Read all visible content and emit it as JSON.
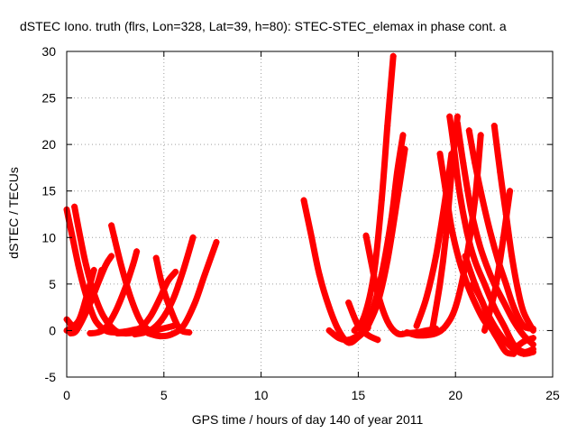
{
  "chart_data": {
    "type": "scatter",
    "title": "dSTEC Iono. truth (flrs, Lon=328, Lat=39, h=80): STEC-STEC_elemax in phase cont. a",
    "xlabel": "GPS time / hours of day 140 of year 2011",
    "ylabel": "dSTEC  / TECUs",
    "xlim": [
      0,
      25
    ],
    "ylim": [
      -5,
      30
    ],
    "x_ticks": [
      "0",
      "5",
      "10",
      "15",
      "20",
      "25"
    ],
    "y_ticks": [
      "-5",
      "0",
      "5",
      "10",
      "15",
      "20",
      "25",
      "30"
    ],
    "x_tick_values": [
      0,
      5,
      10,
      15,
      20,
      25
    ],
    "y_tick_values": [
      -5,
      0,
      5,
      10,
      15,
      20,
      25,
      30
    ],
    "grid": true,
    "marker": "plus",
    "color": "#ff0000",
    "series": [
      {
        "arcs": [
          {
            "x": [
              0.0,
              0.3,
              0.6,
              0.9,
              1.2,
              1.5,
              2.0,
              2.5,
              3.0,
              3.5,
              4.0
            ],
            "y": [
              13.0,
              10.0,
              7.0,
              4.5,
              2.5,
              1.0,
              0.0,
              -0.2,
              -0.1,
              0.1,
              0.3
            ]
          },
          {
            "x": [
              0.4,
              0.7,
              1.0,
              1.4,
              1.9,
              2.5,
              3.0,
              3.5
            ],
            "y": [
              13.3,
              10.0,
              7.0,
              4.0,
              1.5,
              0.0,
              -0.3,
              -0.2
            ]
          },
          {
            "x": [
              0.0,
              0.5,
              1.0,
              1.5,
              1.8
            ],
            "y": [
              1.2,
              0.3,
              2.0,
              4.5,
              6.5
            ]
          },
          {
            "x": [
              0.2,
              0.5,
              1.0,
              1.5,
              2.0,
              2.3
            ],
            "y": [
              -0.3,
              0.0,
              2.0,
              4.5,
              7.0,
              8.0
            ]
          },
          {
            "x": [
              0.0,
              0.6,
              1.0,
              1.4
            ],
            "y": [
              0.0,
              1.0,
              3.5,
              6.5
            ]
          },
          {
            "x": [
              2.3,
              2.8,
              3.3,
              3.8,
              4.3,
              4.9,
              5.5
            ],
            "y": [
              11.3,
              7.0,
              3.5,
              1.0,
              0.0,
              0.2,
              0.5
            ]
          },
          {
            "x": [
              1.2,
              1.6,
              2.0,
              2.5,
              3.0,
              3.4,
              3.6
            ],
            "y": [
              -0.3,
              -0.2,
              0.3,
              2.0,
              4.5,
              7.0,
              8.5
            ]
          },
          {
            "x": [
              2.6,
              3.2,
              3.8,
              4.3,
              4.8,
              5.2,
              5.6
            ],
            "y": [
              -0.3,
              -0.2,
              0.3,
              1.5,
              3.5,
              5.3,
              6.3
            ]
          },
          {
            "x": [
              4.6,
              4.9,
              5.3,
              5.8,
              6.3
            ],
            "y": [
              7.8,
              5.0,
              2.5,
              0.2,
              -0.2
            ]
          },
          {
            "x": [
              3.5,
              4.0,
              4.5,
              5.0,
              5.5,
              6.0,
              6.5
            ],
            "y": [
              -0.4,
              -0.2,
              0.3,
              1.5,
              3.5,
              6.5,
              10.0
            ]
          },
          {
            "x": [
              4.2,
              4.8,
              5.4,
              6.0,
              6.6,
              7.1,
              7.7
            ],
            "y": [
              -0.3,
              -0.6,
              -0.4,
              0.5,
              3.0,
              6.0,
              9.5
            ]
          }
        ]
      },
      {
        "arcs": [
          {
            "x": [
              12.2,
              12.6,
              13.0,
              13.5,
              14.0,
              14.5,
              15.0,
              15.5
            ],
            "y": [
              14.0,
              10.0,
              6.0,
              2.5,
              0.0,
              -1.3,
              -0.7,
              0.3
            ]
          },
          {
            "x": [
              13.5,
              14.0,
              14.5,
              15.0,
              15.4
            ],
            "y": [
              0.0,
              -0.8,
              -1.0,
              -0.5,
              0.2
            ]
          },
          {
            "x": [
              14.5,
              15.0,
              15.5,
              16.0
            ],
            "y": [
              3.0,
              0.5,
              -0.5,
              -1.0
            ]
          },
          {
            "x": [
              15.4,
              15.7,
              16.0,
              16.5,
              17.0,
              17.5,
              18.0,
              18.5,
              19.0
            ],
            "y": [
              10.2,
              7.0,
              4.0,
              1.0,
              -0.3,
              -0.3,
              -0.2,
              0.0,
              0.2
            ]
          },
          {
            "x": [
              14.8,
              15.3,
              15.8,
              16.2,
              16.5,
              16.8
            ],
            "y": [
              0.0,
              1.5,
              6.0,
              14.0,
              22.0,
              29.5
            ]
          },
          {
            "x": [
              15.2,
              15.7,
              16.2,
              16.7,
              17.0,
              17.3
            ],
            "y": [
              0.0,
              2.0,
              6.0,
              12.0,
              17.0,
              21.0
            ]
          },
          {
            "x": [
              15.5,
              16.0,
              16.5,
              17.0,
              17.4
            ],
            "y": [
              0.5,
              3.0,
              7.5,
              14.0,
              19.5
            ]
          },
          {
            "x": [
              18.0,
              18.5,
              19.0,
              19.5,
              19.8
            ],
            "y": [
              0.5,
              3.5,
              8.0,
              14.5,
              19.0
            ]
          },
          {
            "x": [
              19.7,
              19.9,
              20.2,
              20.6,
              21.0,
              21.5,
              22.0,
              22.5,
              23.0,
              23.5,
              24.0
            ],
            "y": [
              23.0,
              20.0,
              15.0,
              10.5,
              7.5,
              5.0,
              2.5,
              0.5,
              -1.5,
              -2.3,
              -2.0
            ]
          },
          {
            "x": [
              19.2,
              19.5,
              19.8,
              20.2,
              20.6,
              21.0,
              21.5,
              22.0
            ],
            "y": [
              19.0,
              15.0,
              11.0,
              7.5,
              5.0,
              3.0,
              1.0,
              0.0
            ]
          },
          {
            "x": [
              18.8,
              19.2,
              19.5,
              19.8,
              20.1
            ],
            "y": [
              0.0,
              5.0,
              10.0,
              17.0,
              23.0
            ]
          },
          {
            "x": [
              17.5,
              18.0,
              18.5,
              19.0,
              19.5,
              20.0,
              20.5,
              21.0,
              21.3
            ],
            "y": [
              -0.2,
              -0.5,
              -0.5,
              -0.3,
              0.5,
              2.5,
              7.0,
              14.0,
              21.0
            ]
          },
          {
            "x": [
              20.1,
              20.4,
              20.8,
              21.2,
              21.6,
              22.0,
              22.5,
              23.0,
              23.5,
              24.0
            ],
            "y": [
              22.3,
              18.0,
              13.0,
              9.5,
              7.0,
              5.0,
              3.0,
              1.0,
              -0.5,
              -1.5
            ]
          },
          {
            "x": [
              20.7,
              21.0,
              21.4,
              21.8,
              22.2,
              22.6,
              23.0,
              23.5,
              24.0
            ],
            "y": [
              21.5,
              18.0,
              14.0,
              10.5,
              7.5,
              5.0,
              2.5,
              0.5,
              0.2
            ]
          },
          {
            "x": [
              20.9,
              21.4,
              21.8,
              22.2,
              22.6,
              23.0
            ],
            "y": [
              5.0,
              3.0,
              0.5,
              -1.0,
              -2.3,
              -2.5
            ]
          },
          {
            "x": [
              22.0,
              22.3,
              22.6,
              22.9,
              23.2,
              23.5,
              24.0
            ],
            "y": [
              22.0,
              17.0,
              12.5,
              8.0,
              4.5,
              2.0,
              0.0
            ]
          },
          {
            "x": [
              21.5,
              22.0,
              22.4,
              22.8
            ],
            "y": [
              0.0,
              4.0,
              9.0,
              15.0
            ]
          },
          {
            "x": [
              20.5,
              21.0,
              21.5,
              22.0,
              22.5,
              23.0,
              23.5,
              24.0
            ],
            "y": [
              8.0,
              5.0,
              2.5,
              0.5,
              -1.0,
              -2.0,
              -2.5,
              -2.3
            ]
          },
          {
            "x": [
              23.0,
              23.5,
              24.0
            ],
            "y": [
              -2.0,
              -1.2,
              -0.8
            ]
          }
        ]
      }
    ]
  }
}
